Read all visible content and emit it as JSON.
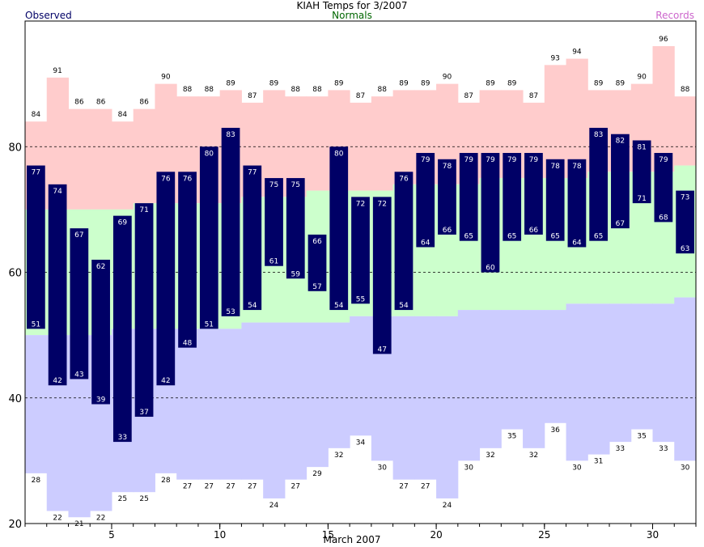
{
  "chart_data": {
    "type": "bar",
    "title": "KIAH Temps for 3/2007",
    "xlabel": "March 2007",
    "legend": {
      "observed": "Observed",
      "normals": "Normals",
      "records": "Records",
      "placement": "top"
    },
    "colors": {
      "observed": "#000066",
      "normals_band": "#ccffcc",
      "record_high_band": "#ffcccc",
      "record_low_band": "#ccccff",
      "observed_text": "#000066",
      "normals_text": "#006600",
      "records_text": "#cc66cc",
      "label_on_bar": "#ffffff",
      "label_outside": "#000000"
    },
    "ylim": [
      20,
      100
    ],
    "yticks": [
      20,
      40,
      60,
      80
    ],
    "gridlines_y": [
      40,
      60,
      80
    ],
    "xlim": [
      1,
      32
    ],
    "xticks": [
      5,
      10,
      15,
      20,
      25,
      30
    ],
    "days": [
      1,
      2,
      3,
      4,
      5,
      6,
      7,
      8,
      9,
      10,
      11,
      12,
      13,
      14,
      15,
      16,
      17,
      18,
      19,
      20,
      21,
      22,
      23,
      24,
      25,
      26,
      27,
      28,
      29,
      30,
      31
    ],
    "observed_high": [
      77,
      74,
      67,
      62,
      69,
      71,
      76,
      76,
      80,
      83,
      77,
      75,
      75,
      66,
      80,
      72,
      72,
      76,
      79,
      78,
      79,
      79,
      79,
      79,
      78,
      78,
      83,
      82,
      81,
      79,
      73
    ],
    "observed_low": [
      51,
      42,
      43,
      39,
      33,
      37,
      42,
      48,
      51,
      53,
      54,
      61,
      59,
      57,
      54,
      55,
      47,
      54,
      64,
      66,
      65,
      60,
      65,
      66,
      65,
      64,
      65,
      67,
      71,
      68,
      63
    ],
    "normal_high": [
      70,
      70,
      70,
      70,
      70,
      71,
      71,
      71,
      71,
      71,
      72,
      72,
      72,
      73,
      73,
      73,
      73,
      74,
      74,
      74,
      74,
      75,
      75,
      75,
      75,
      75,
      76,
      76,
      76,
      76,
      77
    ],
    "normal_low": [
      50,
      50,
      50,
      50,
      51,
      51,
      51,
      51,
      51,
      51,
      52,
      52,
      52,
      52,
      52,
      53,
      53,
      53,
      53,
      53,
      54,
      54,
      54,
      54,
      54,
      55,
      55,
      55,
      55,
      55,
      56
    ],
    "record_high": [
      84,
      91,
      86,
      86,
      84,
      86,
      90,
      88,
      88,
      89,
      87,
      89,
      88,
      88,
      89,
      87,
      88,
      89,
      89,
      90,
      87,
      89,
      89,
      87,
      93,
      94,
      89,
      89,
      90,
      96,
      88
    ],
    "record_low": [
      28,
      22,
      21,
      22,
      25,
      25,
      28,
      27,
      27,
      27,
      27,
      24,
      27,
      29,
      32,
      34,
      30,
      27,
      27,
      24,
      30,
      32,
      35,
      32,
      36,
      30,
      31,
      33,
      35,
      33,
      30
    ]
  }
}
